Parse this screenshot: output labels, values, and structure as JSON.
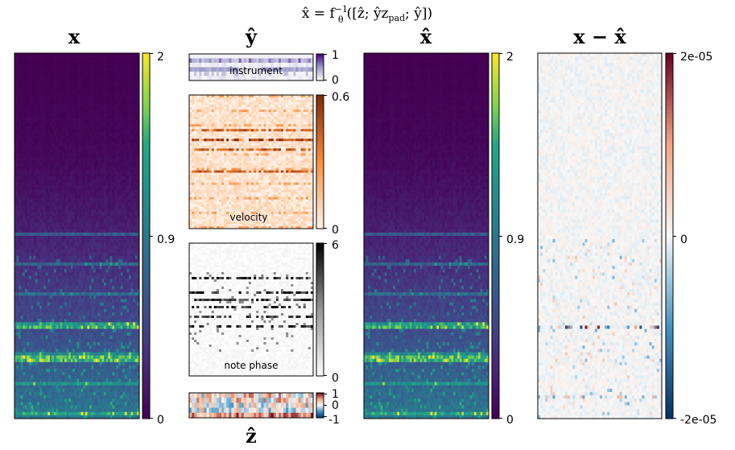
{
  "figure": {
    "suptitle": "x̂ = f_θ⁻¹([ẑ; ŷz_pad; ŷ])",
    "suptitle_parts": [
      "x̂ = f",
      "θ",
      "−1",
      "([ẑ; ŷz",
      "pad",
      "; ŷ])"
    ]
  },
  "chart_data": [
    {
      "id": "x",
      "type": "heatmap",
      "title": "x",
      "colormap": "viridis",
      "colorbar": {
        "range": [
          0,
          2
        ],
        "ticks": [
          0,
          0.9,
          2
        ],
        "tick_labels": [
          "0",
          "0.9",
          "2"
        ]
      },
      "description_values": {
        "dark_top_value": 0,
        "bright_band_value": 2
      }
    },
    {
      "id": "y_instrument",
      "type": "heatmap",
      "title": "ŷ",
      "panel_label": "instrument",
      "colormap": "Purples",
      "colorbar": {
        "range": [
          0,
          1
        ],
        "ticks": [
          0,
          1
        ],
        "tick_labels": [
          "0",
          "1"
        ]
      }
    },
    {
      "id": "y_velocity",
      "type": "heatmap",
      "panel_label": "velocity",
      "colormap": "Oranges",
      "colorbar": {
        "range": [
          0,
          0.6
        ],
        "ticks": [
          0,
          0.6
        ],
        "tick_labels": [
          "0",
          "0.6"
        ]
      }
    },
    {
      "id": "y_note_phase",
      "type": "heatmap",
      "panel_label": "note phase",
      "colormap": "Greys",
      "colorbar": {
        "range": [
          0,
          6
        ],
        "ticks": [
          0,
          6
        ],
        "tick_labels": [
          "0",
          "6"
        ]
      }
    },
    {
      "id": "z_hat",
      "type": "heatmap",
      "xlabel": "ẑ",
      "colormap": "RdBu_r",
      "colorbar": {
        "range": [
          -1,
          1
        ],
        "ticks": [
          -1,
          0,
          1
        ],
        "tick_labels": [
          "-1",
          "0",
          "1"
        ]
      }
    },
    {
      "id": "x_hat",
      "type": "heatmap",
      "title": "x̂",
      "colormap": "viridis",
      "colorbar": {
        "range": [
          0,
          2
        ],
        "ticks": [
          0,
          0.9,
          2
        ],
        "tick_labels": [
          "0",
          "0.9",
          "2"
        ]
      }
    },
    {
      "id": "x_minus_x_hat",
      "type": "heatmap",
      "title": "x − x̂",
      "colormap": "RdBu_r",
      "colorbar": {
        "range": [
          -2e-05,
          2e-05
        ],
        "ticks": [
          -2e-05,
          0,
          2e-05
        ],
        "tick_labels": [
          "-2e-05",
          "0",
          "2e-05"
        ]
      }
    }
  ]
}
